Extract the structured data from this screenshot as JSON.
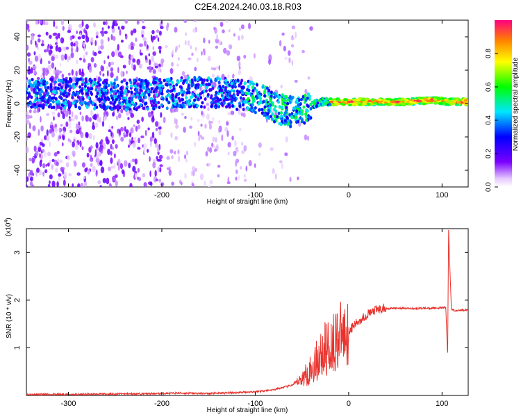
{
  "title": "C2E4.2024.240.03.18.R03",
  "chart_data": [
    {
      "type": "heatmap",
      "xlabel": "Height of straight line (km)",
      "ylabel": "Frequency (Hz)",
      "xlim": [
        -345,
        128
      ],
      "ylim": [
        -50,
        50
      ],
      "x_ticks": [
        -300,
        -200,
        -100,
        0,
        100
      ],
      "y_ticks": [
        -40,
        -20,
        0,
        20,
        40
      ],
      "colorbar": {
        "label": "Normalized spectral amplitude",
        "range": [
          0,
          1
        ],
        "ticks": [
          0.0,
          0.2,
          0.4,
          0.6,
          0.8
        ],
        "tick_labels": [
          "0.0",
          "0.2",
          "0.4",
          "0.6",
          "0.8"
        ]
      },
      "ridge": [
        {
          "x": -320,
          "y": 6
        },
        {
          "x": -280,
          "y": 6
        },
        {
          "x": -240,
          "y": 5
        },
        {
          "x": -200,
          "y": 6
        },
        {
          "x": -160,
          "y": 7
        },
        {
          "x": -130,
          "y": 6
        },
        {
          "x": -110,
          "y": 5
        },
        {
          "x": -95,
          "y": 3
        },
        {
          "x": -80,
          "y": -2
        },
        {
          "x": -65,
          "y": -5
        },
        {
          "x": -50,
          "y": -4
        },
        {
          "x": -40,
          "y": -1
        },
        {
          "x": -30,
          "y": 1
        },
        {
          "x": -15,
          "y": 1
        },
        {
          "x": 0,
          "y": 1
        },
        {
          "x": 30,
          "y": 1
        },
        {
          "x": 60,
          "y": 1
        },
        {
          "x": 90,
          "y": 2
        },
        {
          "x": 110,
          "y": 1
        },
        {
          "x": 128,
          "y": 1
        }
      ]
    },
    {
      "type": "line",
      "xlabel": "Height of straight line (km)",
      "ylabel": "SNR (10 * v/v)",
      "y_multiplier": "(x10",
      "y_multiplier_exp": "4",
      "y_multiplier_close": ")",
      "xlim": [
        -345,
        128
      ],
      "ylim": [
        0,
        3.5
      ],
      "x_ticks": [
        -300,
        -200,
        -100,
        0,
        100
      ],
      "y_ticks": [
        1,
        2,
        3
      ],
      "color": "#e8312b",
      "series": [
        {
          "x": [
            -345,
            -300,
            -250,
            -200,
            -180,
            -150,
            -120,
            -100,
            -80,
            -60,
            -50,
            -40,
            -30,
            -20,
            -10,
            0,
            10,
            20,
            30,
            40,
            50,
            60,
            70,
            80,
            90,
            100,
            104,
            106,
            107,
            108,
            110,
            115,
            128
          ],
          "y": [
            0.02,
            0.02,
            0.03,
            0.04,
            0.05,
            0.04,
            0.06,
            0.08,
            0.12,
            0.22,
            0.35,
            0.55,
            0.85,
            1.05,
            1.25,
            1.35,
            1.55,
            1.7,
            1.8,
            1.82,
            1.83,
            1.83,
            1.82,
            1.83,
            1.83,
            1.84,
            1.85,
            0.8,
            3.5,
            2.9,
            1.8,
            1.78,
            1.8
          ]
        }
      ]
    }
  ]
}
